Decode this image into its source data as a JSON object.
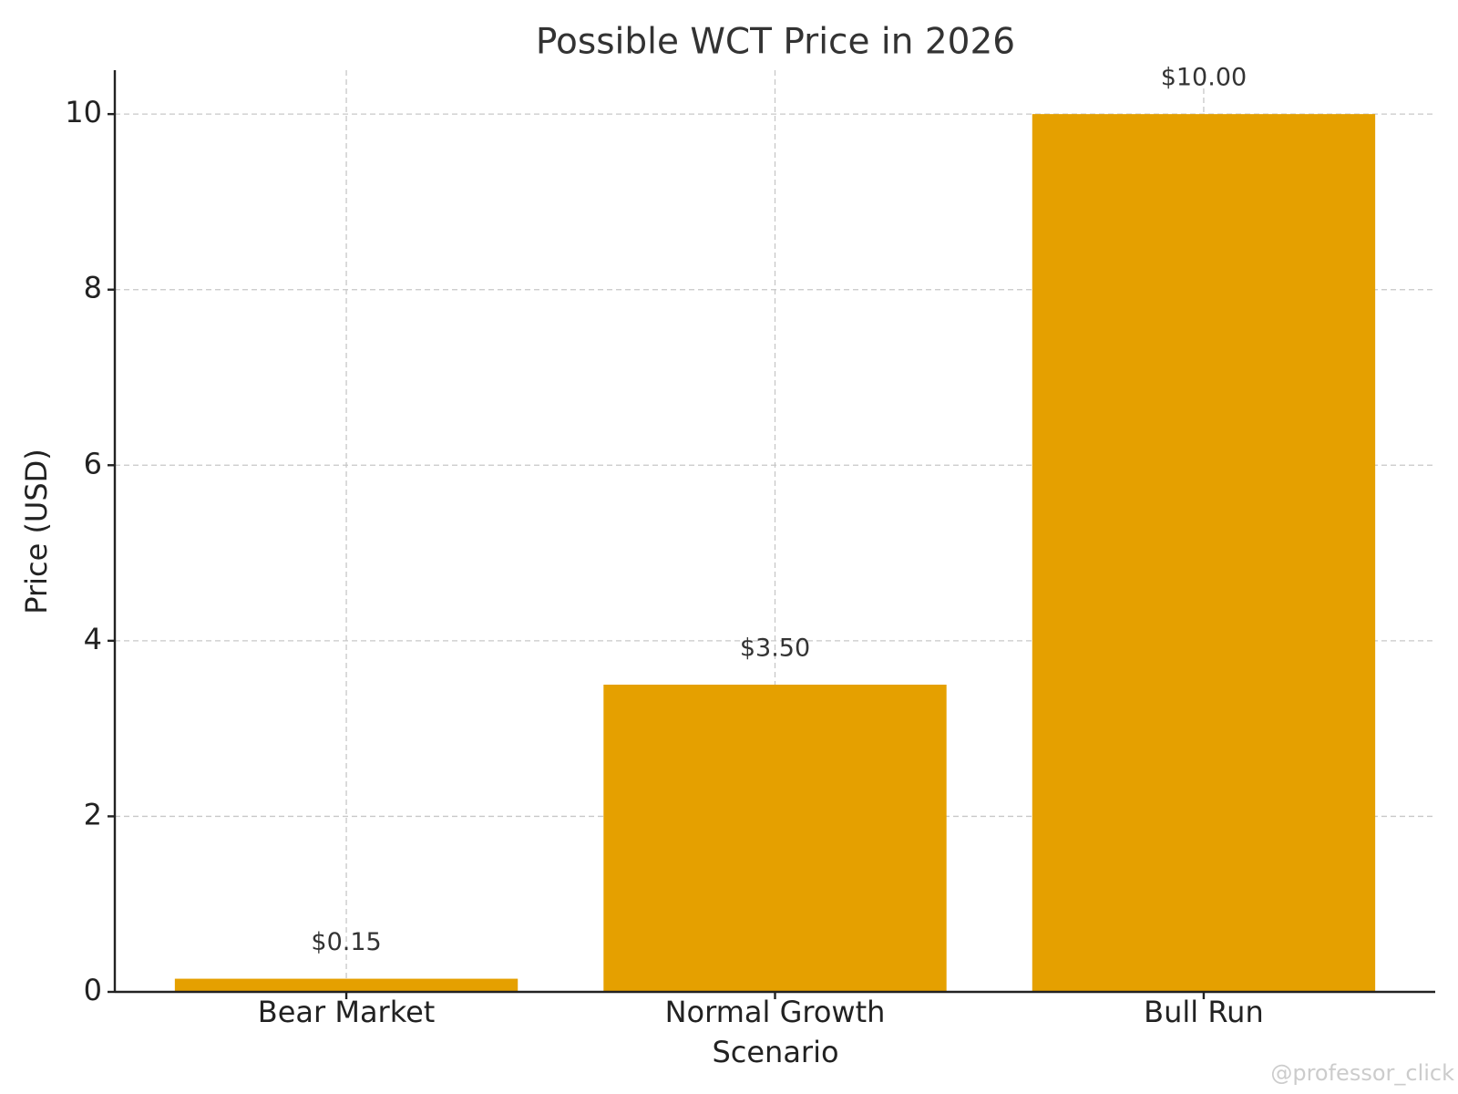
{
  "chart_data": {
    "type": "bar",
    "title": "Possible WCT Price in 2026",
    "x_label": "Scenario",
    "y_label": "Price (USD)",
    "categories": [
      "Bear Market",
      "Normal Growth",
      "Bull Run"
    ],
    "values": [
      0.15,
      3.5,
      10
    ],
    "value_labels": [
      "$0.15",
      "$3.50",
      "$10.00"
    ],
    "color": "#e5a000",
    "ylim": [
      0,
      10.5
    ],
    "yticks": [
      0,
      2,
      4,
      6,
      8,
      10
    ],
    "grid": true,
    "watermark": "@professor_click"
  }
}
